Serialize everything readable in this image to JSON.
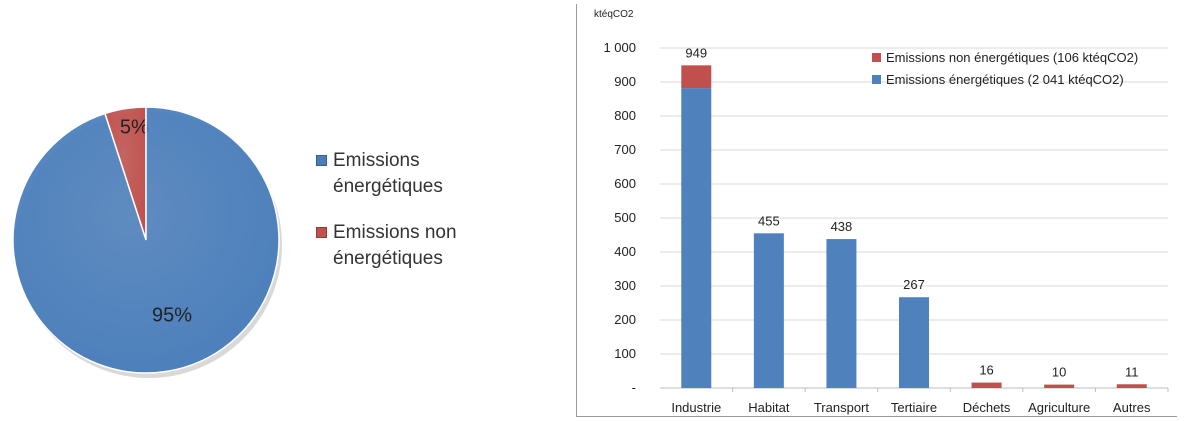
{
  "chart_data": [
    {
      "type": "pie",
      "slices": [
        {
          "label": "Emissions énergétiques",
          "value": 95,
          "pct_label": "95%",
          "color": "#4a7ebb"
        },
        {
          "label": "Emissions non énergétiques",
          "value": 5,
          "pct_label": "5%",
          "color": "#c0504d"
        }
      ],
      "legend_placement": "right"
    },
    {
      "type": "bar",
      "stacked": true,
      "ylabel": "ktéqCO2",
      "ylim": [
        0,
        1000
      ],
      "yticks": [
        "-",
        "100",
        "200",
        "300",
        "400",
        "500",
        "600",
        "700",
        "800",
        "900",
        "1 000"
      ],
      "ytick_values": [
        0,
        100,
        200,
        300,
        400,
        500,
        600,
        700,
        800,
        900,
        1000
      ],
      "grid": true,
      "legend_placement": "top-right",
      "categories": [
        "Industrie",
        "Habitat",
        "Transport",
        "Tertiaire",
        "Déchets",
        "Agriculture",
        "Autres"
      ],
      "series": [
        {
          "name": "Emissions énergétiques (2 041 ktéqCO2)",
          "color": "#4f81bd",
          "values": [
            882,
            455,
            438,
            267,
            0,
            0,
            0
          ]
        },
        {
          "name": "Emissions non énergétiques (106 ktéqCO2)",
          "color": "#c0504d",
          "values": [
            67,
            0,
            0,
            0,
            16,
            10,
            11
          ]
        }
      ],
      "totals": [
        "949",
        "455",
        "438",
        "267",
        "16",
        "10",
        "11"
      ]
    }
  ]
}
